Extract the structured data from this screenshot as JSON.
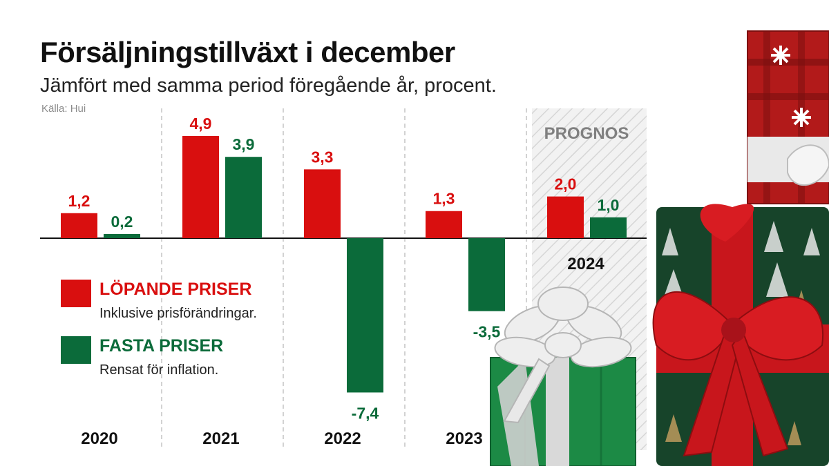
{
  "header": {
    "title": "Försäljningstillväxt i december",
    "subtitle": "Jämfört med samma period föregående år, procent.",
    "source": "Källa: Hui"
  },
  "prognos_label": "PROGNOS",
  "legend": [
    {
      "label": "LÖPANDE PRISER",
      "desc": "Inklusive prisförändringar.",
      "color": "#d90f0f"
    },
    {
      "label": "FASTA PRISER",
      "desc": "Rensat för inflation.",
      "color": "#0b6b3a"
    }
  ],
  "chart_data": {
    "type": "bar",
    "title": "Försäljningstillväxt i december",
    "subtitle": "Jämfört med samma period föregående år, procent.",
    "xlabel": "",
    "ylabel": "",
    "categories": [
      "2020",
      "2021",
      "2022",
      "2023",
      "2024"
    ],
    "series": [
      {
        "name": "LÖPANDE PRISER",
        "color": "#d90f0f",
        "values": [
          1.2,
          4.9,
          3.3,
          1.3,
          2.0
        ],
        "labels": [
          "1,2",
          "4,9",
          "3,3",
          "1,3",
          "2,0"
        ]
      },
      {
        "name": "FASTA PRISER",
        "color": "#0b6b3a",
        "values": [
          0.2,
          3.9,
          -7.4,
          -3.5,
          1.0
        ],
        "labels": [
          "0,2",
          "3,9",
          "-7,4",
          "-3,5",
          "1,0"
        ]
      }
    ],
    "forecast_categories": [
      "2024"
    ],
    "ylim": [
      -8,
      5.5
    ],
    "grid": false,
    "legend_position": "left"
  }
}
